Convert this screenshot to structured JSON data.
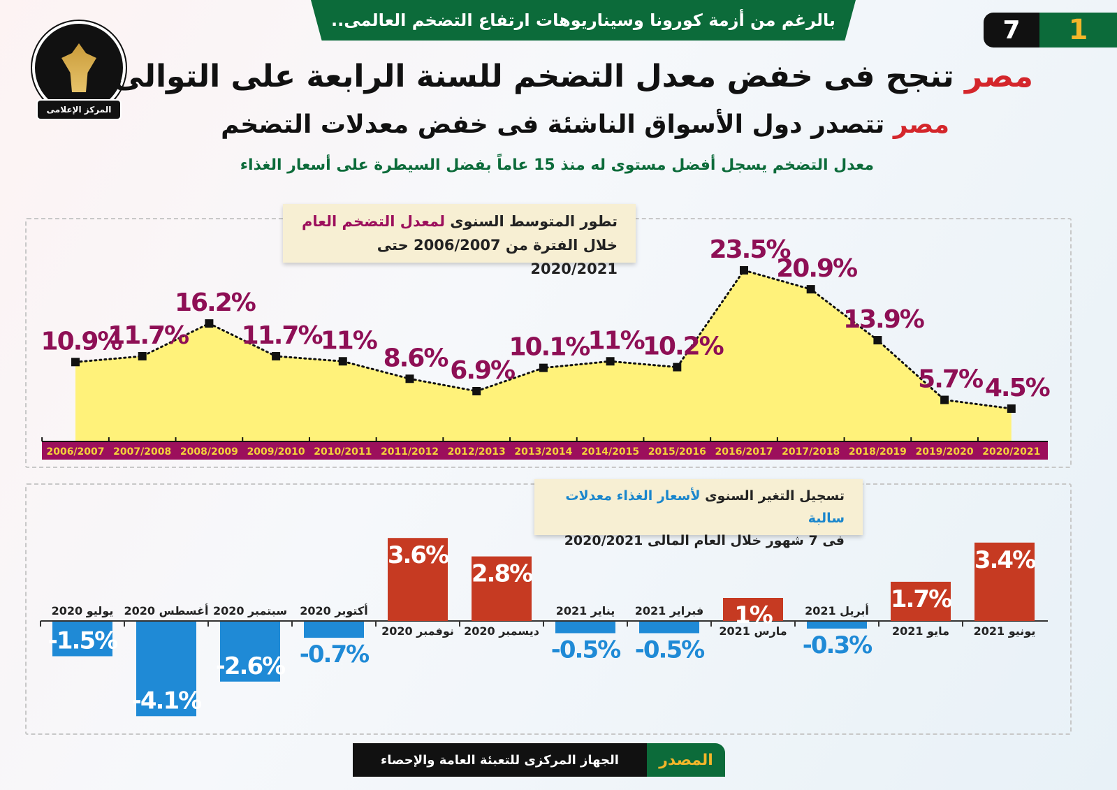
{
  "header": {
    "banner": "بالرغم من أزمة كورونا وسيناريوهات ارتفاع التضخم العالمى..",
    "page_current": "1",
    "page_total": "7",
    "logo_text": "المركز الإعلامى",
    "title_highlight": "مصر",
    "title_rest": " تنجح فى خفض معدل التضخم للسنة الرابعة على التوالى",
    "subtitle_highlight": "مصر",
    "subtitle_rest": " تتصدر دول الأسواق الناشئة فى خفض معدلات التضخم",
    "tagline": "معدل التضخم يسجل أفضل مستوى له منذ 15 عاماً بفضل السيطرة على أسعار الغذاء"
  },
  "chart_data": [
    {
      "type": "area",
      "title_part1": "تطور المتوسط السنوى ",
      "title_highlight": "لمعدل التضخم العام",
      "subtitle": "خلال الفترة من 2006/2007 حتى 2020/2021",
      "categories": [
        "2006/2007",
        "2007/2008",
        "2008/2009",
        "2009/2010",
        "2010/2011",
        "2011/2012",
        "2012/2013",
        "2013/2014",
        "2014/2015",
        "2015/2016",
        "2016/2017",
        "2017/2018",
        "2018/2019",
        "2019/2020",
        "2020/2021"
      ],
      "values": [
        10.9,
        11.7,
        16.2,
        11.7,
        11,
        8.6,
        6.9,
        10.1,
        11,
        10.2,
        23.5,
        20.9,
        13.9,
        5.7,
        4.5
      ],
      "unit": "%",
      "colors": {
        "fill": "#fff27a",
        "line": "#111111",
        "labels": "#8e0f55",
        "axis": "#9c0f5c",
        "tick_text": "#f3d23a"
      }
    },
    {
      "type": "bar",
      "title_part1": "تسجيل التغير السنوى ",
      "title_highlight": "لأسعار الغذاء معدلات سالبة",
      "subtitle": "فى 7 شهور خلال العام المالى 2020/2021",
      "categories": [
        "يوليو 2020",
        "أغسطس 2020",
        "سبتمبر 2020",
        "أكتوبر 2020",
        "نوفمبر 2020",
        "ديسمبر 2020",
        "يناير 2021",
        "فبراير 2021",
        "مارس 2021",
        "أبريل 2021",
        "مايو 2021",
        "يونيو 2021"
      ],
      "values": [
        -1.5,
        -4.1,
        -2.6,
        -0.7,
        3.6,
        2.8,
        -0.5,
        -0.5,
        1,
        -0.3,
        1.7,
        3.4
      ],
      "unit": "%",
      "colors": {
        "positive": "#c63a22",
        "negative": "#1f8ad6"
      }
    }
  ],
  "footer": {
    "label": "المصدر",
    "source": "الجهاز المركزى للتعبئة العامة والإحصاء"
  }
}
